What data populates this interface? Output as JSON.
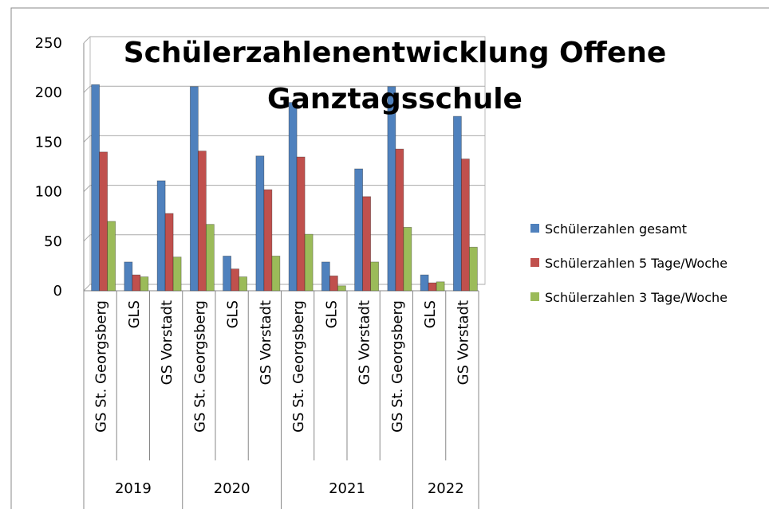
{
  "chart_data": {
    "type": "bar",
    "title": "Schülerzahlenentwicklung Offene Ganztagsschule",
    "groups": [
      {
        "label": "2019",
        "categories": [
          "GS St. Georgsberg",
          "GLS",
          "GS Vorstadt"
        ]
      },
      {
        "label": "2020",
        "categories": [
          "GS St. Georgsberg",
          "GLS",
          "GS Vorstadt"
        ]
      },
      {
        "label": "2021",
        "categories": [
          "GS St. Georgsberg",
          "GLS",
          "GS Vorstadt",
          "GS St. Georgsberg"
        ]
      },
      {
        "label": "2022",
        "categories": [
          "GLS",
          "GS Vorstadt"
        ]
      }
    ],
    "series": [
      {
        "name": "Schülerzahlen gesamt",
        "color": "#4f81bd",
        "values": [
          208,
          29,
          111,
          206,
          35,
          136,
          190,
          29,
          123,
          206,
          16,
          176
        ]
      },
      {
        "name": "Schülerzahlen 5 Tage/Woche",
        "color": "#c0504d",
        "values": [
          140,
          16,
          78,
          141,
          22,
          102,
          135,
          15,
          95,
          143,
          8,
          133
        ]
      },
      {
        "name": "Schülerzahlen 3 Tage/Woche",
        "color": "#9bbb59",
        "values": [
          70,
          14,
          34,
          67,
          14,
          35,
          57,
          5,
          29,
          64,
          9,
          44
        ]
      }
    ],
    "ylim": [
      0,
      250
    ],
    "yticks": [
      0,
      50,
      100,
      150,
      200,
      250
    ],
    "grid": true,
    "legend": "right"
  }
}
